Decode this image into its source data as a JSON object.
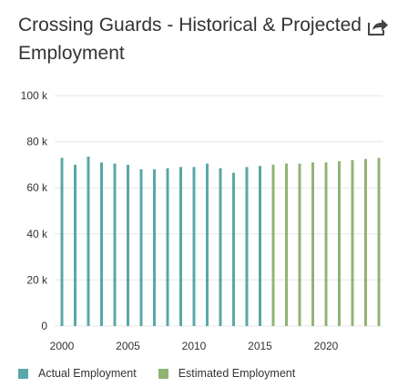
{
  "header": {
    "title": "Crossing Guards - Historical & Projected Employment",
    "share_icon": "share-icon"
  },
  "colors": {
    "actual": "#5aa7a7",
    "estimated": "#90b474",
    "grid": "#e6e6e6",
    "text": "#333333"
  },
  "legend": {
    "actual_label": "Actual Employment",
    "estimated_label": "Estimated Employment"
  },
  "chart_data": {
    "type": "bar",
    "title": "Crossing Guards - Historical & Projected Employment",
    "xlabel": "",
    "ylabel": "",
    "ylim": [
      0,
      100000
    ],
    "y_ticks": [
      0,
      20000,
      40000,
      60000,
      80000,
      100000
    ],
    "y_tick_labels": [
      "0",
      "20 k",
      "40 k",
      "60 k",
      "80 k",
      "100 k"
    ],
    "x_ticks": [
      2000,
      2005,
      2010,
      2015,
      2020
    ],
    "x_tick_labels": [
      "2000",
      "2005",
      "2010",
      "2015",
      "2020"
    ],
    "grid": "horizontal",
    "legend_position": "bottom-left",
    "series": [
      {
        "name": "Actual Employment",
        "color": "#5aa7a7",
        "x": [
          2000,
          2001,
          2002,
          2003,
          2004,
          2005,
          2006,
          2007,
          2008,
          2009,
          2010,
          2011,
          2012,
          2013,
          2014,
          2015
        ],
        "values": [
          73000,
          70000,
          73500,
          71000,
          70500,
          70000,
          68000,
          68000,
          68500,
          69000,
          69000,
          70500,
          68500,
          66500,
          69000,
          69500
        ]
      },
      {
        "name": "Estimated Employment",
        "color": "#90b474",
        "x": [
          2016,
          2017,
          2018,
          2019,
          2020,
          2021,
          2022,
          2023,
          2024
        ],
        "values": [
          70000,
          70500,
          70500,
          71000,
          71000,
          71500,
          72000,
          72500,
          73000
        ]
      }
    ]
  }
}
